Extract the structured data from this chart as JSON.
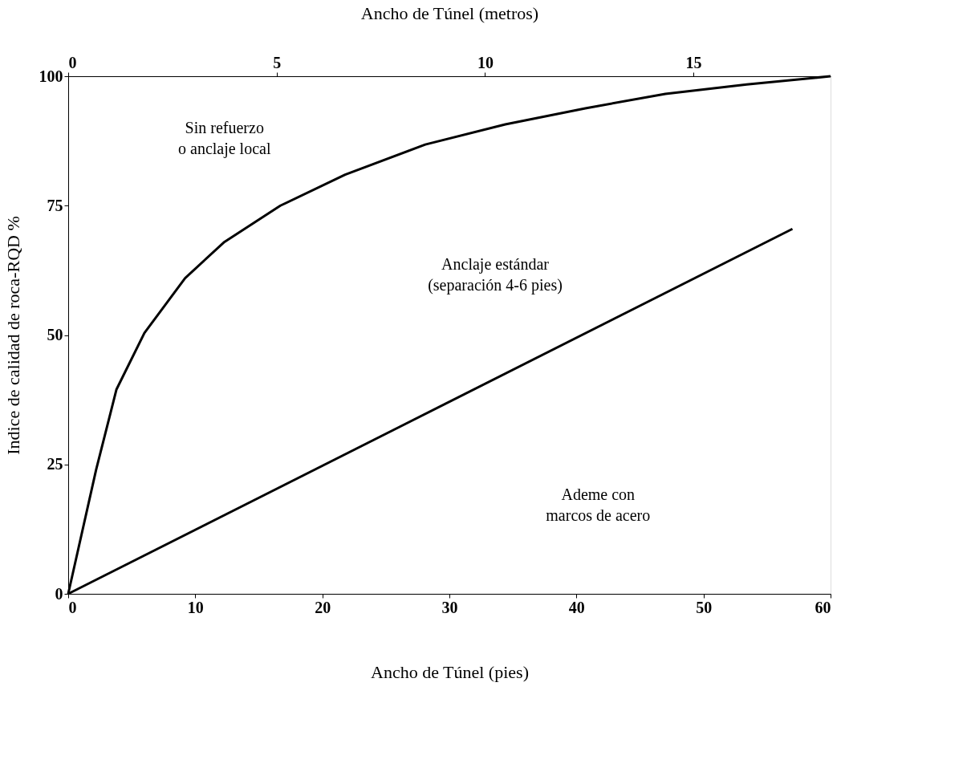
{
  "chart_data": {
    "type": "line",
    "xlabel": "Ancho de Túnel (pies)",
    "x2label": "Ancho de Túnel (metros)",
    "ylabel": "Indice de calidad de roca-RQD %",
    "xlim": [
      0,
      60
    ],
    "xticks": [
      0,
      10,
      20,
      30,
      40,
      50,
      60
    ],
    "x2lim": [
      0,
      18.29
    ],
    "x2ticks": [
      0,
      5,
      10,
      15
    ],
    "ylim": [
      0,
      100
    ],
    "yticks": [
      0,
      25,
      50,
      75,
      100
    ],
    "grid": false,
    "marker": "none",
    "line_style": "solid",
    "series": [
      {
        "color": "#000000",
        "x": [
          0,
          2.2,
          3.8,
          6,
          9.2,
          12.3,
          16.7,
          21.8,
          28.1,
          34.4,
          40.7,
          47,
          53.4,
          60
        ],
        "values": [
          0,
          24,
          39.5,
          50.4,
          61,
          68,
          75,
          81,
          86.8,
          90.7,
          93.8,
          96.6,
          98.4,
          100
        ]
      },
      {
        "color": "#000000",
        "x": [
          0,
          57
        ],
        "values": [
          0,
          70.5
        ]
      }
    ],
    "annotations": [
      "Sin refuerzo\no anclaje local",
      "Anclaje estándar\n(separación 4-6 pies)",
      "Ademe con\nmarcos de acero"
    ]
  }
}
